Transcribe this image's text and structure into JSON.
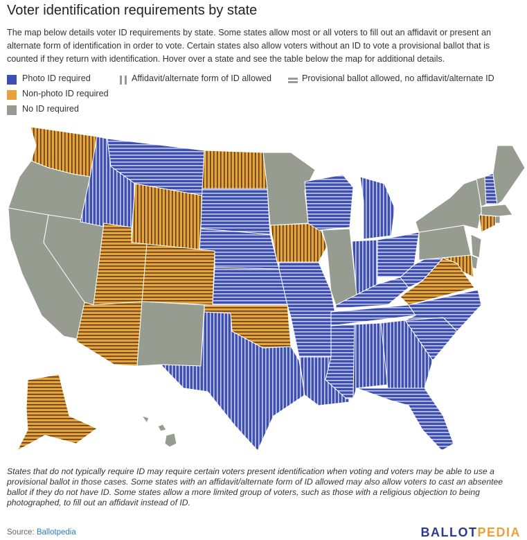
{
  "title": "Voter identification requirements by state",
  "description": "The map below details voter ID requirements by state. Some states allow most or all voters to fill out an affidavit or present an alternate form of identification in order to vote. Certain states also allow voters without an ID to vote a provisional ballot that is counted if they return with identification. Hover over a state and see the table below the map for additional details.",
  "legend": {
    "photo": "Photo ID required",
    "nonphoto": "Non-photo ID required",
    "noid": "No ID required",
    "affidavit": "Affidavit/alternate form of ID allowed",
    "provisional": "Provisional ballot allowed, no affidavit/alternate ID"
  },
  "colors": {
    "photo": "#3e4fb1",
    "nonphoto": "#e8a23b",
    "noid": "#969c8f",
    "stripe_on_blue": "#c5cbeb",
    "stripe_on_orange": "#5a3d12"
  },
  "footnote": "States that do not typically require ID may require certain voters present identification when voting and voters may be able to use a provisional ballot in those cases. Some states with an affidavit/alternate form of ID allowed may also allow voters to cast an absentee ballot if they do not have ID. Some states allow a more limited group of voters, such as those with a religious objection to being photographed, to fill out an affidavit instead of ID.",
  "source_label": "Source: ",
  "source_link": "Ballotpedia",
  "brand_part1": "BALLOT",
  "brand_part2": "PEDIA"
}
